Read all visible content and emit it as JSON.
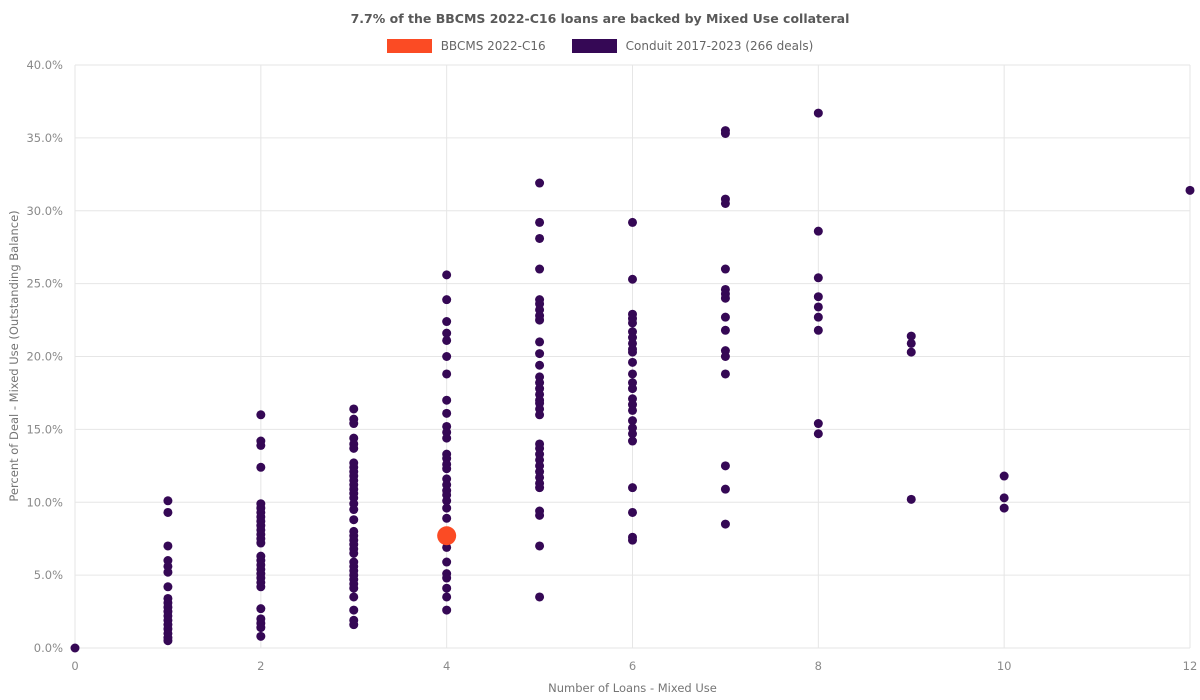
{
  "chart_data": {
    "type": "scatter",
    "title": "7.7% of the BBCMS 2022-C16 loans are backed by Mixed Use collateral",
    "xlabel": "Number of Loans - Mixed Use",
    "ylabel": "Percent of Deal - Mixed Use (Outstanding Balance)",
    "xlim": [
      0,
      12
    ],
    "ylim": [
      0,
      40
    ],
    "xticks": [
      0,
      2,
      4,
      6,
      8,
      10,
      12
    ],
    "xtick_labels": [
      "0",
      "2",
      "4",
      "6",
      "8",
      "10",
      "12"
    ],
    "yticks": [
      0,
      5,
      10,
      15,
      20,
      25,
      30,
      35,
      40
    ],
    "ytick_labels": [
      "0.0%",
      "5.0%",
      "10.0%",
      "15.0%",
      "20.0%",
      "25.0%",
      "30.0%",
      "35.0%",
      "40.0%"
    ],
    "grid": true,
    "legend_position": "top-center",
    "colors": {
      "grid": "#e6e6e6",
      "tick_text": "#8a8a8a",
      "axis_title": "#757575",
      "title_text": "#595959",
      "legend_text": "#666666",
      "background": "#ffffff"
    },
    "series": [
      {
        "name": "BBCMS 2022-C16",
        "color": "#fb4b24",
        "marker_radius": 9.5,
        "points": [
          [
            4,
            7.7
          ]
        ]
      },
      {
        "name": "Conduit 2017-2023 (266 deals)",
        "color": "#350855",
        "marker_radius": 4.5,
        "points": [
          [
            0,
            0.0
          ],
          [
            1,
            10.1
          ],
          [
            1,
            9.3
          ],
          [
            1,
            7.0
          ],
          [
            1,
            6.0
          ],
          [
            1,
            5.6
          ],
          [
            1,
            5.2
          ],
          [
            1,
            4.2
          ],
          [
            1,
            3.4
          ],
          [
            1,
            3.1
          ],
          [
            1,
            2.8
          ],
          [
            1,
            2.5
          ],
          [
            1,
            2.2
          ],
          [
            1,
            1.9
          ],
          [
            1,
            1.6
          ],
          [
            1,
            1.3
          ],
          [
            1,
            1.0
          ],
          [
            1,
            0.7
          ],
          [
            1,
            0.5
          ],
          [
            2,
            16.0
          ],
          [
            2,
            14.2
          ],
          [
            2,
            13.9
          ],
          [
            2,
            12.4
          ],
          [
            2,
            9.9
          ],
          [
            2,
            9.6
          ],
          [
            2,
            9.3
          ],
          [
            2,
            9.0
          ],
          [
            2,
            8.7
          ],
          [
            2,
            8.4
          ],
          [
            2,
            8.1
          ],
          [
            2,
            7.8
          ],
          [
            2,
            7.5
          ],
          [
            2,
            7.2
          ],
          [
            2,
            6.3
          ],
          [
            2,
            6.0
          ],
          [
            2,
            5.7
          ],
          [
            2,
            5.4
          ],
          [
            2,
            5.1
          ],
          [
            2,
            4.8
          ],
          [
            2,
            4.5
          ],
          [
            2,
            4.2
          ],
          [
            2,
            2.7
          ],
          [
            2,
            2.0
          ],
          [
            2,
            1.7
          ],
          [
            2,
            1.4
          ],
          [
            2,
            0.8
          ],
          [
            3,
            16.4
          ],
          [
            3,
            15.7
          ],
          [
            3,
            15.4
          ],
          [
            3,
            14.4
          ],
          [
            3,
            14.0
          ],
          [
            3,
            13.7
          ],
          [
            3,
            12.7
          ],
          [
            3,
            12.4
          ],
          [
            3,
            12.1
          ],
          [
            3,
            11.8
          ],
          [
            3,
            11.5
          ],
          [
            3,
            11.2
          ],
          [
            3,
            10.9
          ],
          [
            3,
            10.6
          ],
          [
            3,
            10.3
          ],
          [
            3,
            9.9
          ],
          [
            3,
            9.5
          ],
          [
            3,
            8.8
          ],
          [
            3,
            8.0
          ],
          [
            3,
            7.7
          ],
          [
            3,
            7.4
          ],
          [
            3,
            7.1
          ],
          [
            3,
            6.8
          ],
          [
            3,
            6.5
          ],
          [
            3,
            5.9
          ],
          [
            3,
            5.6
          ],
          [
            3,
            5.3
          ],
          [
            3,
            5.0
          ],
          [
            3,
            4.7
          ],
          [
            3,
            4.4
          ],
          [
            3,
            4.1
          ],
          [
            3,
            3.5
          ],
          [
            3,
            2.6
          ],
          [
            3,
            1.9
          ],
          [
            3,
            1.6
          ],
          [
            4,
            25.6
          ],
          [
            4,
            23.9
          ],
          [
            4,
            22.4
          ],
          [
            4,
            21.6
          ],
          [
            4,
            21.1
          ],
          [
            4,
            20.0
          ],
          [
            4,
            18.8
          ],
          [
            4,
            17.0
          ],
          [
            4,
            16.1
          ],
          [
            4,
            15.2
          ],
          [
            4,
            14.8
          ],
          [
            4,
            14.4
          ],
          [
            4,
            13.3
          ],
          [
            4,
            13.0
          ],
          [
            4,
            12.6
          ],
          [
            4,
            12.3
          ],
          [
            4,
            11.6
          ],
          [
            4,
            11.2
          ],
          [
            4,
            10.8
          ],
          [
            4,
            10.5
          ],
          [
            4,
            10.1
          ],
          [
            4,
            9.6
          ],
          [
            4,
            8.9
          ],
          [
            4,
            6.9
          ],
          [
            4,
            5.9
          ],
          [
            4,
            5.1
          ],
          [
            4,
            4.8
          ],
          [
            4,
            4.1
          ],
          [
            4,
            3.5
          ],
          [
            4,
            2.6
          ],
          [
            5,
            31.9
          ],
          [
            5,
            29.2
          ],
          [
            5,
            28.1
          ],
          [
            5,
            26.0
          ],
          [
            5,
            23.9
          ],
          [
            5,
            23.6
          ],
          [
            5,
            23.2
          ],
          [
            5,
            22.8
          ],
          [
            5,
            22.5
          ],
          [
            5,
            21.0
          ],
          [
            5,
            20.2
          ],
          [
            5,
            19.4
          ],
          [
            5,
            18.6
          ],
          [
            5,
            18.2
          ],
          [
            5,
            17.8
          ],
          [
            5,
            17.4
          ],
          [
            5,
            17.0
          ],
          [
            5,
            16.8
          ],
          [
            5,
            16.4
          ],
          [
            5,
            16.0
          ],
          [
            5,
            14.0
          ],
          [
            5,
            13.7
          ],
          [
            5,
            13.3
          ],
          [
            5,
            12.9
          ],
          [
            5,
            12.5
          ],
          [
            5,
            12.1
          ],
          [
            5,
            11.7
          ],
          [
            5,
            11.3
          ],
          [
            5,
            11.0
          ],
          [
            5,
            9.4
          ],
          [
            5,
            9.1
          ],
          [
            5,
            7.0
          ],
          [
            5,
            3.5
          ],
          [
            6,
            29.2
          ],
          [
            6,
            25.3
          ],
          [
            6,
            22.9
          ],
          [
            6,
            22.6
          ],
          [
            6,
            22.3
          ],
          [
            6,
            21.7
          ],
          [
            6,
            21.3
          ],
          [
            6,
            20.9
          ],
          [
            6,
            20.5
          ],
          [
            6,
            20.3
          ],
          [
            6,
            19.6
          ],
          [
            6,
            18.8
          ],
          [
            6,
            18.2
          ],
          [
            6,
            17.8
          ],
          [
            6,
            17.1
          ],
          [
            6,
            16.7
          ],
          [
            6,
            16.3
          ],
          [
            6,
            15.6
          ],
          [
            6,
            15.1
          ],
          [
            6,
            14.7
          ],
          [
            6,
            14.2
          ],
          [
            6,
            11.0
          ],
          [
            6,
            9.3
          ],
          [
            6,
            7.6
          ],
          [
            6,
            7.4
          ],
          [
            7,
            35.5
          ],
          [
            7,
            35.3
          ],
          [
            7,
            30.8
          ],
          [
            7,
            30.5
          ],
          [
            7,
            26.0
          ],
          [
            7,
            24.6
          ],
          [
            7,
            24.3
          ],
          [
            7,
            24.0
          ],
          [
            7,
            22.7
          ],
          [
            7,
            21.8
          ],
          [
            7,
            20.4
          ],
          [
            7,
            20.0
          ],
          [
            7,
            18.8
          ],
          [
            7,
            12.5
          ],
          [
            7,
            10.9
          ],
          [
            7,
            8.5
          ],
          [
            8,
            36.7
          ],
          [
            8,
            28.6
          ],
          [
            8,
            25.4
          ],
          [
            8,
            24.1
          ],
          [
            8,
            23.4
          ],
          [
            8,
            22.7
          ],
          [
            8,
            21.8
          ],
          [
            8,
            15.4
          ],
          [
            8,
            14.7
          ],
          [
            9,
            21.4
          ],
          [
            9,
            20.9
          ],
          [
            9,
            20.3
          ],
          [
            9,
            10.2
          ],
          [
            10,
            11.8
          ],
          [
            10,
            10.3
          ],
          [
            10,
            9.6
          ],
          [
            12,
            31.4
          ]
        ]
      }
    ]
  }
}
